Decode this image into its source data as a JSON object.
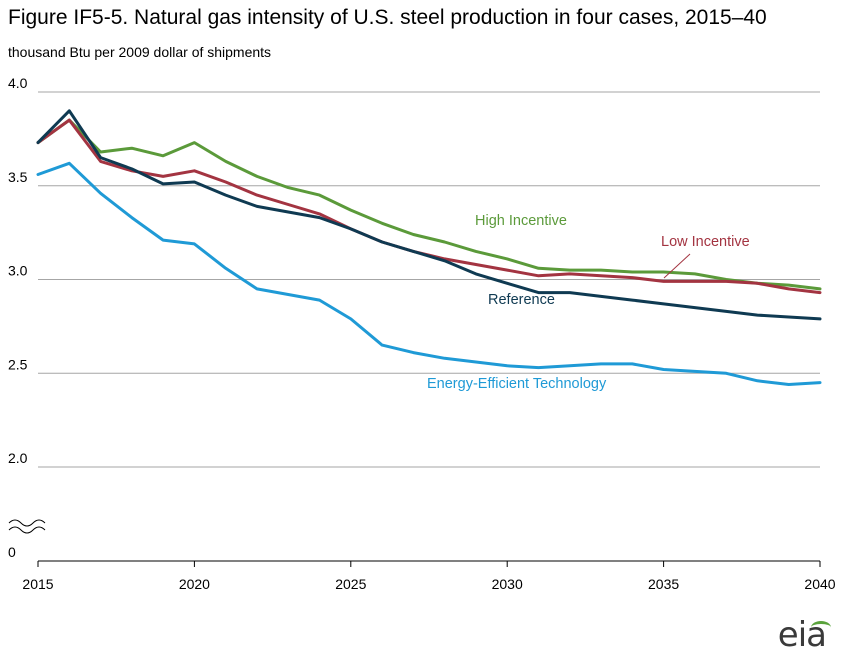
{
  "title": "Figure IF5-5. Natural gas intensity of U.S. steel production in four cases, 2015–40",
  "subtitle": "thousand Btu per 2009 dollar of shipments",
  "logo_text": "eia",
  "colors": {
    "high": "#5b9a3a",
    "low": "#a33441",
    "reference": "#0f3a52",
    "efficient": "#1f9ad6",
    "grid": "#a6a6a6",
    "axis": "#000000"
  },
  "chart_data": {
    "type": "line",
    "title": "Figure IF5-5. Natural gas intensity of U.S. steel production in four cases, 2015–40",
    "ylabel": "thousand Btu per 2009 dollar of shipments",
    "xlabel": "",
    "xlim": [
      2015,
      2040
    ],
    "ylim": [
      2.0,
      4.0
    ],
    "axis_break": true,
    "x_ticks": [
      2015,
      2020,
      2025,
      2030,
      2035,
      2040
    ],
    "y_ticks": [
      {
        "value": 4.0,
        "label": "4.0"
      },
      {
        "value": 3.5,
        "label": "3.5"
      },
      {
        "value": 3.0,
        "label": "3.0"
      },
      {
        "value": 2.5,
        "label": "2.5"
      },
      {
        "value": 2.0,
        "label": "2.0"
      },
      {
        "value": 0,
        "label": "0"
      }
    ],
    "grid": true,
    "x": [
      2015,
      2016,
      2017,
      2018,
      2019,
      2020,
      2021,
      2022,
      2023,
      2024,
      2025,
      2026,
      2027,
      2028,
      2029,
      2030,
      2031,
      2032,
      2033,
      2034,
      2035,
      2036,
      2037,
      2038,
      2039,
      2040
    ],
    "series": [
      {
        "name": "High Incentive",
        "color_key": "high",
        "values": [
          3.73,
          3.85,
          3.68,
          3.7,
          3.66,
          3.73,
          3.63,
          3.55,
          3.49,
          3.45,
          3.37,
          3.3,
          3.24,
          3.2,
          3.15,
          3.11,
          3.06,
          3.05,
          3.05,
          3.04,
          3.04,
          3.03,
          3.0,
          2.98,
          2.97,
          2.95
        ]
      },
      {
        "name": "Low Incentive",
        "color_key": "low",
        "values": [
          3.73,
          3.85,
          3.63,
          3.58,
          3.55,
          3.58,
          3.52,
          3.45,
          3.4,
          3.35,
          3.27,
          3.2,
          3.15,
          3.11,
          3.08,
          3.05,
          3.02,
          3.03,
          3.02,
          3.01,
          2.99,
          2.99,
          2.99,
          2.98,
          2.95,
          2.93
        ]
      },
      {
        "name": "Reference",
        "color_key": "reference",
        "values": [
          3.73,
          3.9,
          3.65,
          3.59,
          3.51,
          3.52,
          3.45,
          3.39,
          3.36,
          3.33,
          3.27,
          3.2,
          3.15,
          3.1,
          3.03,
          2.98,
          2.93,
          2.93,
          2.91,
          2.89,
          2.87,
          2.85,
          2.83,
          2.81,
          2.8,
          2.79
        ]
      },
      {
        "name": "Energy-Efficient Technology",
        "color_key": "efficient",
        "values": [
          3.56,
          3.62,
          3.46,
          3.33,
          3.21,
          3.19,
          3.06,
          2.95,
          2.92,
          2.89,
          2.79,
          2.65,
          2.61,
          2.58,
          2.56,
          2.54,
          2.53,
          2.54,
          2.55,
          2.55,
          2.52,
          2.51,
          2.5,
          2.46,
          2.44,
          2.45
        ]
      }
    ],
    "annotations": [
      {
        "text": "High Incentive",
        "color_key": "high"
      },
      {
        "text": "Low Incentive",
        "color_key": "low"
      },
      {
        "text": "Reference",
        "color_key": "reference"
      },
      {
        "text": "Energy-Efficient Technology",
        "color_key": "efficient"
      }
    ]
  }
}
